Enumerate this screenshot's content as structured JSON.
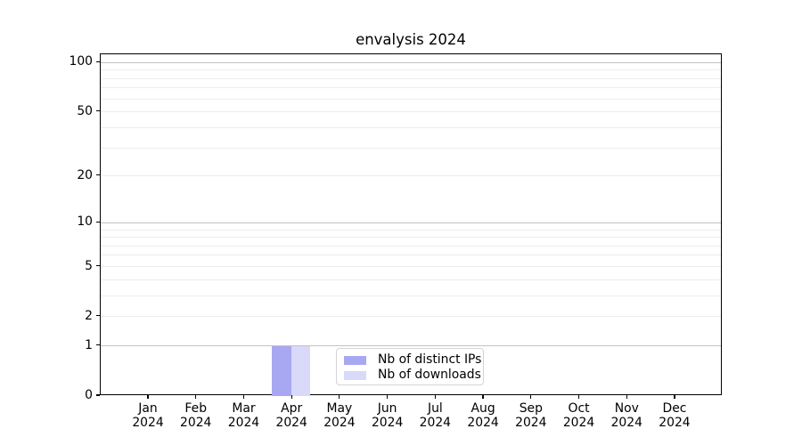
{
  "chart_data": {
    "type": "bar",
    "title": "envalysis 2024",
    "x_axis": {
      "categories": [
        "Jan",
        "Feb",
        "Mar",
        "Apr",
        "May",
        "Jun",
        "Jul",
        "Aug",
        "Sep",
        "Oct",
        "Nov",
        "Dec"
      ],
      "year_line": "2024"
    },
    "y_axis": {
      "scale": "log1p",
      "tick_values": [
        0,
        1,
        2,
        5,
        10,
        20,
        50,
        100
      ],
      "major_gridlines": [
        1,
        10,
        100
      ],
      "minor_gridlines": [
        2,
        3,
        4,
        5,
        6,
        7,
        8,
        9,
        20,
        30,
        40,
        50,
        60,
        70,
        80,
        90
      ],
      "ylim": [
        0,
        112
      ],
      "grid": "horizontal"
    },
    "series": [
      {
        "name": "Nb of distinct IPs",
        "color": "#a8a8f2",
        "values": [
          0,
          0,
          0,
          1,
          0,
          0,
          0,
          0,
          0,
          0,
          0,
          0
        ]
      },
      {
        "name": "Nb of downloads",
        "color": "#d9d9f9",
        "values": [
          0,
          0,
          0,
          1,
          0,
          0,
          0,
          0,
          0,
          0,
          0,
          0
        ]
      }
    ],
    "legend": {
      "position": "lower center"
    }
  },
  "colors": {
    "background": "#ffffff",
    "spine": "#000000",
    "text": "#000000",
    "major_grid": "#c2c2c2",
    "minor_grid": "#ececec",
    "legend_border": "#d4d4d4",
    "bar_distinct_ips": "#a8a8f2",
    "bar_downloads": "#d9d9f9"
  }
}
